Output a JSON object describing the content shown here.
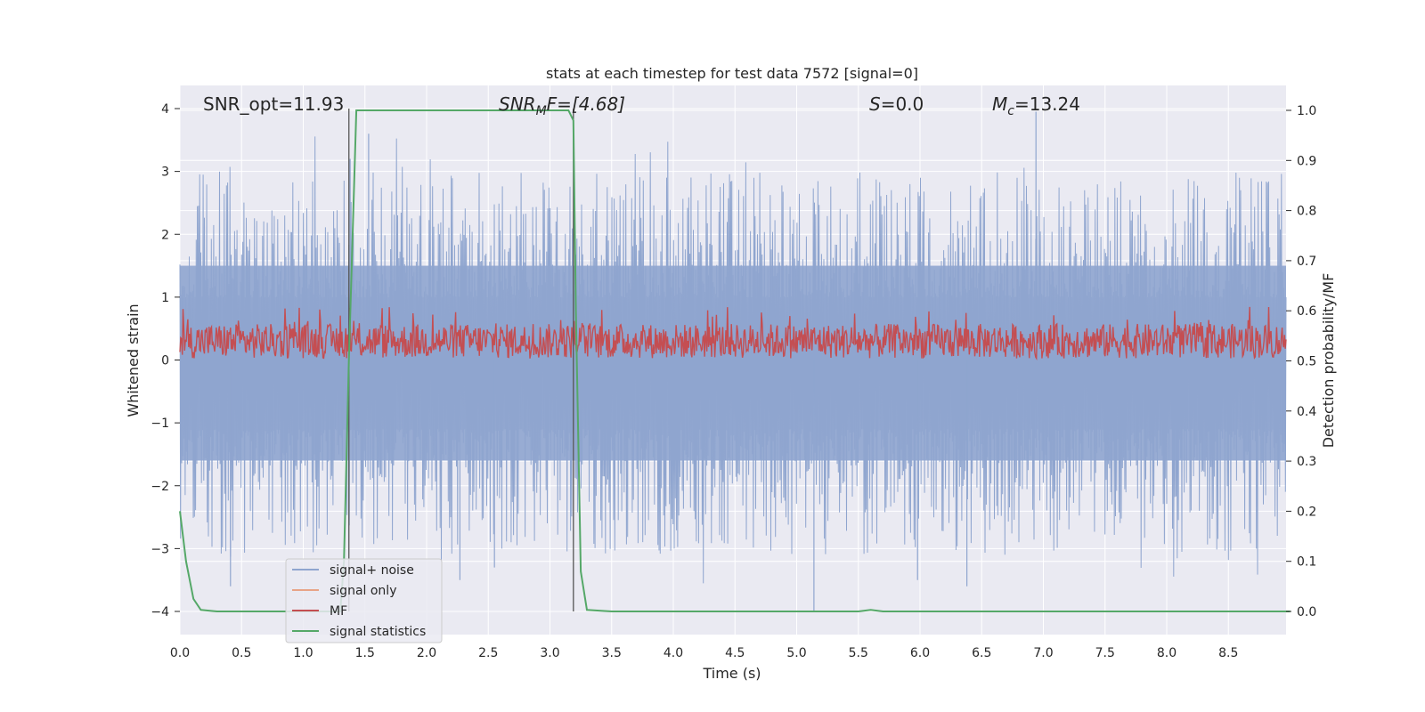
{
  "chart_data": {
    "type": "line",
    "title": "stats at each timestep for test data 7572 [signal=0]",
    "xlabel": "Time (s)",
    "ylabel": "Whitened strain",
    "ylabel_right": "Detection probability/MF",
    "xlim": [
      0.0,
      9.0
    ],
    "ylim": [
      -4.4,
      4.35
    ],
    "ylim_right": [
      -0.048,
      1.048
    ],
    "xticks": [
      "0.0",
      "0.5",
      "1.0",
      "1.5",
      "2.0",
      "2.5",
      "3.0",
      "3.5",
      "4.0",
      "4.5",
      "5.0",
      "5.5",
      "6.0",
      "6.5",
      "7.0",
      "7.5",
      "8.0",
      "8.5"
    ],
    "yticks": [
      "4",
      "3",
      "2",
      "1",
      "0",
      "−1",
      "−2",
      "−3",
      "−4"
    ],
    "yticks_right": [
      "1.0",
      "0.9",
      "0.8",
      "0.7",
      "0.6",
      "0.5",
      "0.4",
      "0.3",
      "0.2",
      "0.1",
      "0.0"
    ],
    "annotations": {
      "snr_opt": "SNR_opt=11.93",
      "snr_mf_main": "SNR",
      "snr_mf_sub": "M",
      "snr_mf_rest": "F=[4.68]",
      "s_italic": "S",
      "s_rest": "=0.0",
      "mc_main": "M",
      "mc_sub": "c",
      "mc_rest": "=13.24"
    },
    "vertical_markers_x": [
      1.37,
      3.19
    ],
    "series": [
      {
        "name": "signal+ noise",
        "color": "#8fa5cf",
        "axis": "left",
        "band_upper": 1.5,
        "band_lower": -1.6,
        "peak_max": 3.95,
        "peak_min": -4.0
      },
      {
        "name": "signal only",
        "color": "#e8a487",
        "axis": "left"
      },
      {
        "name": "MF",
        "color": "#c44e52",
        "axis": "left",
        "mean": 0.3,
        "range": [
          0.0,
          1.0
        ]
      },
      {
        "name": "signal statistics",
        "color": "#55a868",
        "axis": "right",
        "x": [
          0.0,
          0.05,
          0.11,
          0.17,
          0.3,
          1.0,
          1.3,
          1.33,
          1.37,
          1.43,
          1.5,
          2.0,
          2.5,
          3.0,
          3.1,
          3.15,
          3.19,
          3.21,
          3.25,
          3.3,
          3.5,
          5.5,
          5.6,
          5.7,
          9.0
        ],
        "y": [
          0.2,
          0.1,
          0.025,
          0.003,
          0.0,
          0.0,
          0.0,
          0.1,
          0.5,
          1.0,
          1.0,
          1.0,
          1.0,
          1.0,
          1.0,
          1.0,
          0.98,
          0.6,
          0.08,
          0.003,
          0.0,
          0.0,
          0.003,
          0.0,
          0.0
        ]
      }
    ],
    "legend_position": "lower-left"
  }
}
